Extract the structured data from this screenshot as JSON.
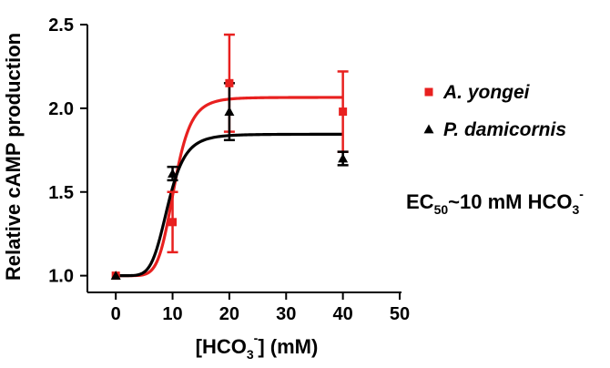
{
  "chart_data": {
    "type": "scatter",
    "xlabel": "[HCO3-] (mM)",
    "xlabel_parts": {
      "pre": "[HCO",
      "sub": "3",
      "sup": "-",
      "post": "] (mM)"
    },
    "ylabel": "Relative cAMP production",
    "xlim": [
      -5,
      50
    ],
    "ylim": [
      0.9,
      2.5
    ],
    "x_ticks": [
      0,
      10,
      20,
      30,
      40,
      50
    ],
    "x_tick_labels": [
      "0",
      "10",
      "20",
      "30",
      "40",
      "50"
    ],
    "y_ticks": [
      1.0,
      1.5,
      2.0,
      2.5
    ],
    "y_tick_labels": [
      "1.0",
      "1.5",
      "2.0",
      "2.5"
    ],
    "grid": false,
    "legend_position": "right",
    "series": [
      {
        "name": "A. yongei",
        "color": "#e8201f",
        "marker": "square",
        "x": [
          0,
          10,
          20,
          40
        ],
        "y": [
          1.0,
          1.32,
          2.15,
          1.98
        ],
        "err": [
          0.0,
          0.18,
          0.29,
          0.24
        ],
        "fit": {
          "bottom": 1.0,
          "top": 2.065,
          "ec50": 10.3,
          "hill": 7
        }
      },
      {
        "name": "P. damicornis",
        "color": "#000000",
        "marker": "triangle",
        "x": [
          0,
          10,
          20,
          40
        ],
        "y": [
          1.0,
          1.61,
          1.98,
          1.7
        ],
        "err": [
          0.0,
          0.04,
          0.17,
          0.04
        ],
        "fit": {
          "bottom": 1.0,
          "top": 1.845,
          "ec50": 9.2,
          "hill": 6
        }
      }
    ],
    "annotation": {
      "pre": "EC",
      "sub": "50",
      "mid": "~10 mM HCO",
      "sub2": "3",
      "sup": "-"
    }
  }
}
